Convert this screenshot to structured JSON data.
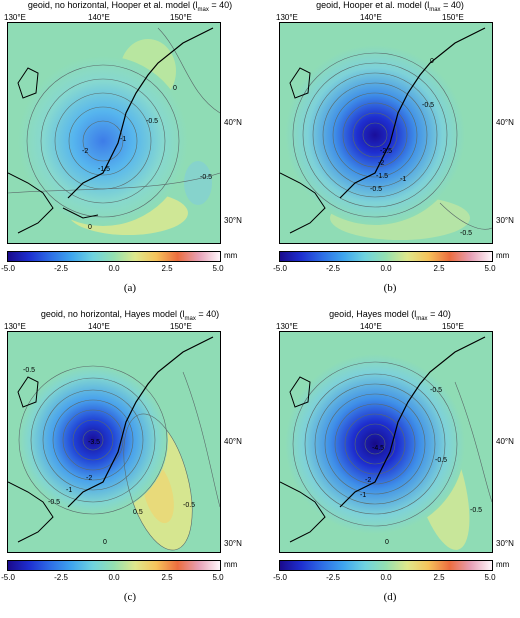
{
  "panels": [
    {
      "title": "geoid, no horizontal, Hooper et al. model (l",
      "title_sub": "max",
      "title_tail": " = 40)",
      "lon_ticks": [
        "130°E",
        "140°E",
        "150°E"
      ],
      "lat_ticks": [
        "40°N",
        "30°N"
      ],
      "contour_labels": [
        "0",
        "-0.5",
        "-1",
        "-1.5",
        "-2",
        "-0.5",
        "0"
      ],
      "colorbar_ticks": [
        "-5.0",
        "-2.5",
        "0.0",
        "2.5",
        "5.0"
      ],
      "colorbar_unit": "mm",
      "caption": "(a)"
    },
    {
      "title": "geoid, Hooper et al. model (l",
      "title_sub": "max",
      "title_tail": " = 40)",
      "lon_ticks": [
        "130°E",
        "140°E",
        "150°E"
      ],
      "lat_ticks": [
        "40°N",
        "30°N"
      ],
      "contour_labels": [
        "0",
        "-0.5",
        "-2.5",
        "-2",
        "-1.5",
        "-1",
        "-0.5",
        "-0.5"
      ],
      "colorbar_ticks": [
        "-5.0",
        "-2.5",
        "0.0",
        "2.5",
        "5.0"
      ],
      "colorbar_unit": "mm",
      "caption": "(b)"
    },
    {
      "title": "geoid, no horizontal, Hayes model (l",
      "title_sub": "max",
      "title_tail": " = 40)",
      "lon_ticks": [
        "130°E",
        "140°E",
        "150°E"
      ],
      "lat_ticks": [
        "40°N",
        "30°N"
      ],
      "contour_labels": [
        "-0.5",
        "-3.5",
        "-2",
        "-1",
        "-0.5",
        "0.5",
        "0",
        "-0.5"
      ],
      "colorbar_ticks": [
        "-5.0",
        "-2.5",
        "0.0",
        "2.5",
        "5.0"
      ],
      "colorbar_unit": "mm",
      "caption": "(c)"
    },
    {
      "title": "geoid, Hayes model (l",
      "title_sub": "max",
      "title_tail": " = 40)",
      "lon_ticks": [
        "130°E",
        "140°E",
        "150°E"
      ],
      "lat_ticks": [
        "40°N",
        "30°N"
      ],
      "contour_labels": [
        "-0.5",
        "-4.5",
        "-2",
        "-1",
        "-0.5",
        "0",
        "-0.5"
      ],
      "colorbar_ticks": [
        "-5.0",
        "-2.5",
        "0.0",
        "2.5",
        "5.0"
      ],
      "colorbar_unit": "mm",
      "caption": "(d)"
    }
  ],
  "colors": {
    "background_field": "#8fdcb5",
    "low_center": "#1c2bd0",
    "positive_lobe": "#dde88a",
    "coastline": "#000000"
  }
}
